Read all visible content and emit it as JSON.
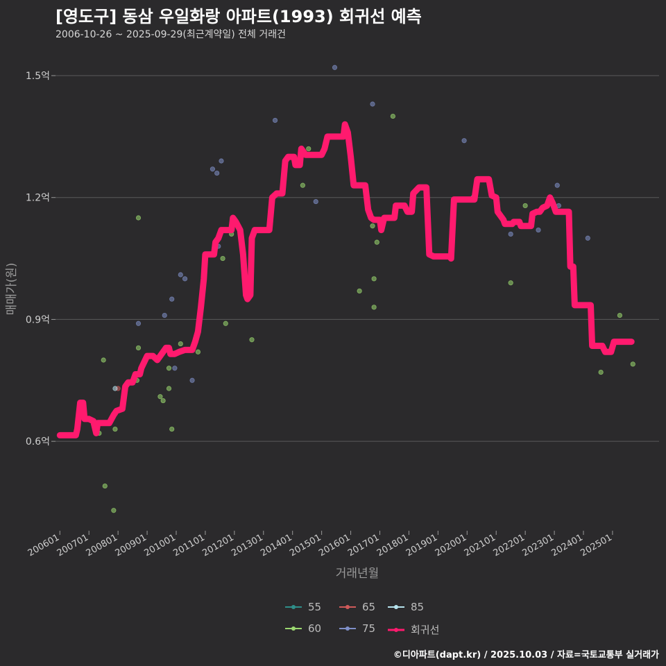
{
  "header": {
    "title": "[영도구] 동삼 우일화랑 아파트(1993) 회귀선 예측",
    "subtitle": "2006-10-26 ~ 2025-09-29(최근계약일) 전체 거래건"
  },
  "caption": "©디아파트(dapt.kr) / 2025.10.03 / 자료=국토교통부 실거래가",
  "colors": {
    "background": "#2b2a2c",
    "grid": "#5b5b5b",
    "regression": "#ff1a6e",
    "s55": "#2f8f8a",
    "s60": "#9bd870",
    "s65": "#d05a5a",
    "s75": "#7f8fc8",
    "s85": "#b6e3ee"
  },
  "legend": [
    {
      "label": "55",
      "key": "s55"
    },
    {
      "label": "65",
      "key": "s65"
    },
    {
      "label": "85",
      "key": "s85"
    },
    {
      "label": "60",
      "key": "s60"
    },
    {
      "label": "75",
      "key": "s75"
    },
    {
      "label": "회귀선",
      "key": "regression"
    }
  ],
  "chart_data": {
    "type": "scatter",
    "title": "[영도구] 동삼 우일화랑 아파트(1993) 회귀선 예측",
    "xlabel": "거래년월",
    "ylabel": "매매가(원)",
    "xlim": [
      2005.85,
      2026.6
    ],
    "ylim": [
      0.38,
      1.57
    ],
    "x_ticks": [
      {
        "v": 2006.0,
        "label": "200601"
      },
      {
        "v": 2007.0,
        "label": "200701"
      },
      {
        "v": 2008.0,
        "label": "200801"
      },
      {
        "v": 2009.0,
        "label": "200901"
      },
      {
        "v": 2010.0,
        "label": "201001"
      },
      {
        "v": 2011.0,
        "label": "201101"
      },
      {
        "v": 2012.0,
        "label": "201201"
      },
      {
        "v": 2013.0,
        "label": "201301"
      },
      {
        "v": 2014.0,
        "label": "201401"
      },
      {
        "v": 2015.0,
        "label": "201501"
      },
      {
        "v": 2016.0,
        "label": "201601"
      },
      {
        "v": 2017.0,
        "label": "201701"
      },
      {
        "v": 2018.0,
        "label": "201801"
      },
      {
        "v": 2019.0,
        "label": "201901"
      },
      {
        "v": 2020.0,
        "label": "202001"
      },
      {
        "v": 2021.0,
        "label": "202101"
      },
      {
        "v": 2022.0,
        "label": "202201"
      },
      {
        "v": 2023.0,
        "label": "202301"
      },
      {
        "v": 2024.0,
        "label": "202401"
      },
      {
        "v": 2025.0,
        "label": "202501"
      }
    ],
    "y_ticks": [
      {
        "v": 0.6,
        "label": "0.6억"
      },
      {
        "v": 0.9,
        "label": "0.9억"
      },
      {
        "v": 1.2,
        "label": "1.2억"
      },
      {
        "v": 1.5,
        "label": "1.5억"
      }
    ],
    "series": [
      {
        "name": "60",
        "points": [
          [
            2007.9,
            0.63
          ],
          [
            2007.35,
            0.62
          ],
          [
            2007.55,
            0.49
          ],
          [
            2007.85,
            0.43
          ],
          [
            2007.5,
            0.8
          ],
          [
            2008.55,
            0.75
          ],
          [
            2008.65,
            0.75
          ],
          [
            2008.7,
            0.83
          ],
          [
            2008.85,
            0.79
          ],
          [
            2009.45,
            0.71
          ],
          [
            2009.55,
            0.7
          ],
          [
            2009.75,
            0.73
          ],
          [
            2009.75,
            0.78
          ],
          [
            2009.85,
            0.63
          ],
          [
            2010.15,
            0.84
          ],
          [
            2010.75,
            0.82
          ],
          [
            2011.6,
            1.05
          ],
          [
            2011.7,
            0.89
          ],
          [
            2011.9,
            1.11
          ],
          [
            2012.6,
            0.85
          ],
          [
            2014.35,
            1.23
          ],
          [
            2014.55,
            1.32
          ],
          [
            2016.3,
            0.97
          ],
          [
            2016.75,
            1.13
          ],
          [
            2016.8,
            0.93
          ],
          [
            2016.8,
            1.0
          ],
          [
            2016.9,
            1.09
          ],
          [
            2017.45,
            1.4
          ],
          [
            2021.5,
            0.99
          ],
          [
            2022.0,
            1.18
          ],
          [
            2024.6,
            0.77
          ],
          [
            2025.25,
            0.91
          ],
          [
            2025.7,
            0.79
          ],
          [
            2008.7,
            1.15
          ]
        ]
      },
      {
        "name": "65",
        "points": [
          [
            2008.0,
            0.73
          ]
        ]
      },
      {
        "name": "75",
        "points": [
          [
            2008.7,
            0.89
          ],
          [
            2009.6,
            0.91
          ],
          [
            2009.85,
            0.95
          ],
          [
            2009.95,
            0.78
          ],
          [
            2010.15,
            1.01
          ],
          [
            2010.3,
            1.0
          ],
          [
            2010.55,
            0.75
          ],
          [
            2011.25,
            1.27
          ],
          [
            2011.4,
            1.26
          ],
          [
            2011.55,
            1.29
          ],
          [
            2011.45,
            1.08
          ],
          [
            2013.4,
            1.39
          ],
          [
            2014.8,
            1.19
          ],
          [
            2015.45,
            1.52
          ],
          [
            2015.9,
            1.35
          ],
          [
            2016.75,
            1.43
          ],
          [
            2019.9,
            1.34
          ],
          [
            2020.2,
            1.2
          ],
          [
            2021.5,
            1.11
          ],
          [
            2022.45,
            1.12
          ],
          [
            2023.1,
            1.23
          ],
          [
            2023.15,
            1.18
          ],
          [
            2024.15,
            1.1
          ]
        ]
      },
      {
        "name": "85",
        "points": [
          [
            2007.9,
            0.73
          ]
        ]
      }
    ],
    "regression": [
      [
        2006.0,
        0.615
      ],
      [
        2006.55,
        0.615
      ],
      [
        2006.6,
        0.63
      ],
      [
        2006.7,
        0.695
      ],
      [
        2006.8,
        0.695
      ],
      [
        2006.85,
        0.655
      ],
      [
        2007.0,
        0.655
      ],
      [
        2007.15,
        0.65
      ],
      [
        2007.25,
        0.62
      ],
      [
        2007.3,
        0.645
      ],
      [
        2007.7,
        0.645
      ],
      [
        2007.85,
        0.665
      ],
      [
        2007.95,
        0.675
      ],
      [
        2008.15,
        0.68
      ],
      [
        2008.25,
        0.735
      ],
      [
        2008.35,
        0.745
      ],
      [
        2008.5,
        0.745
      ],
      [
        2008.6,
        0.765
      ],
      [
        2008.75,
        0.765
      ],
      [
        2008.8,
        0.78
      ],
      [
        2009.0,
        0.81
      ],
      [
        2009.2,
        0.81
      ],
      [
        2009.35,
        0.8
      ],
      [
        2009.5,
        0.815
      ],
      [
        2009.65,
        0.83
      ],
      [
        2009.75,
        0.83
      ],
      [
        2009.8,
        0.815
      ],
      [
        2009.95,
        0.815
      ],
      [
        2010.1,
        0.82
      ],
      [
        2010.3,
        0.825
      ],
      [
        2010.55,
        0.825
      ],
      [
        2010.65,
        0.845
      ],
      [
        2010.75,
        0.87
      ],
      [
        2010.85,
        0.93
      ],
      [
        2010.95,
        1.0
      ],
      [
        2011.0,
        1.06
      ],
      [
        2011.15,
        1.06
      ],
      [
        2011.3,
        1.06
      ],
      [
        2011.35,
        1.09
      ],
      [
        2011.45,
        1.1
      ],
      [
        2011.55,
        1.12
      ],
      [
        2011.7,
        1.12
      ],
      [
        2011.9,
        1.12
      ],
      [
        2011.95,
        1.15
      ],
      [
        2012.05,
        1.14
      ],
      [
        2012.2,
        1.12
      ],
      [
        2012.3,
        1.06
      ],
      [
        2012.4,
        0.96
      ],
      [
        2012.45,
        0.95
      ],
      [
        2012.55,
        0.96
      ],
      [
        2012.6,
        1.1
      ],
      [
        2012.7,
        1.12
      ],
      [
        2013.0,
        1.12
      ],
      [
        2013.2,
        1.12
      ],
      [
        2013.3,
        1.2
      ],
      [
        2013.45,
        1.21
      ],
      [
        2013.65,
        1.21
      ],
      [
        2013.75,
        1.29
      ],
      [
        2013.85,
        1.3
      ],
      [
        2014.05,
        1.3
      ],
      [
        2014.1,
        1.28
      ],
      [
        2014.25,
        1.28
      ],
      [
        2014.3,
        1.32
      ],
      [
        2014.45,
        1.305
      ],
      [
        2014.75,
        1.305
      ],
      [
        2015.0,
        1.305
      ],
      [
        2015.1,
        1.32
      ],
      [
        2015.2,
        1.35
      ],
      [
        2015.55,
        1.35
      ],
      [
        2015.75,
        1.35
      ],
      [
        2015.8,
        1.38
      ],
      [
        2015.9,
        1.36
      ],
      [
        2016.0,
        1.3
      ],
      [
        2016.1,
        1.23
      ],
      [
        2016.5,
        1.23
      ],
      [
        2016.6,
        1.17
      ],
      [
        2016.7,
        1.15
      ],
      [
        2016.8,
        1.145
      ],
      [
        2017.0,
        1.145
      ],
      [
        2017.05,
        1.12
      ],
      [
        2017.15,
        1.15
      ],
      [
        2017.5,
        1.15
      ],
      [
        2017.55,
        1.18
      ],
      [
        2017.85,
        1.18
      ],
      [
        2017.95,
        1.165
      ],
      [
        2018.1,
        1.165
      ],
      [
        2018.15,
        1.21
      ],
      [
        2018.35,
        1.225
      ],
      [
        2018.6,
        1.225
      ],
      [
        2018.7,
        1.06
      ],
      [
        2018.85,
        1.055
      ],
      [
        2019.4,
        1.055
      ],
      [
        2019.45,
        1.05
      ],
      [
        2019.55,
        1.195
      ],
      [
        2019.65,
        1.195
      ],
      [
        2020.05,
        1.195
      ],
      [
        2020.25,
        1.195
      ],
      [
        2020.35,
        1.245
      ],
      [
        2020.75,
        1.245
      ],
      [
        2020.85,
        1.205
      ],
      [
        2021.0,
        1.2
      ],
      [
        2021.05,
        1.165
      ],
      [
        2021.25,
        1.145
      ],
      [
        2021.3,
        1.135
      ],
      [
        2021.55,
        1.135
      ],
      [
        2021.6,
        1.14
      ],
      [
        2021.8,
        1.14
      ],
      [
        2021.85,
        1.13
      ],
      [
        2022.0,
        1.13
      ],
      [
        2022.2,
        1.13
      ],
      [
        2022.25,
        1.16
      ],
      [
        2022.4,
        1.165
      ],
      [
        2022.5,
        1.165
      ],
      [
        2022.6,
        1.175
      ],
      [
        2022.75,
        1.18
      ],
      [
        2022.85,
        1.2
      ],
      [
        2022.95,
        1.185
      ],
      [
        2023.05,
        1.165
      ],
      [
        2023.4,
        1.165
      ],
      [
        2023.5,
        1.165
      ],
      [
        2023.55,
        1.03
      ],
      [
        2023.65,
        1.03
      ],
      [
        2023.7,
        0.935
      ],
      [
        2023.75,
        0.935
      ],
      [
        2024.25,
        0.935
      ],
      [
        2024.3,
        0.835
      ],
      [
        2024.65,
        0.835
      ],
      [
        2024.75,
        0.82
      ],
      [
        2024.95,
        0.82
      ],
      [
        2025.05,
        0.845
      ],
      [
        2025.65,
        0.845
      ]
    ]
  }
}
